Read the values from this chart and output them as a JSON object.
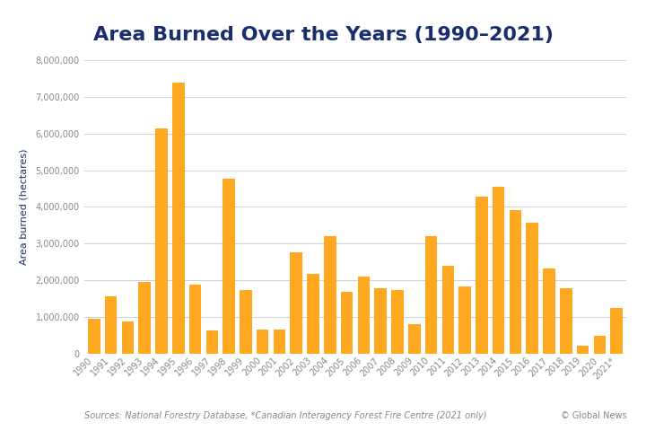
{
  "title": "Area Burned Over the Years (1990–2021)",
  "ylabel": "Area burned (hectares)",
  "background_color": "#ffffff",
  "bar_color": "#FFA920",
  "title_color": "#1a2e6e",
  "axis_label_color": "#1a2e6e",
  "tick_color": "#888888",
  "source_text": "Sources: National Forestry Database, *Canadian Interagency Forest Fire Centre (2021 only)",
  "credit_text": "© Global News",
  "years": [
    "1990",
    "1991",
    "1992",
    "1993",
    "1994",
    "1995",
    "1996",
    "1997",
    "1998",
    "1999",
    "2000",
    "2001",
    "2002",
    "2003",
    "2004",
    "2005",
    "2006",
    "2007",
    "2008",
    "2009",
    "2010",
    "2011",
    "2012",
    "2013",
    "2014",
    "2015",
    "2016",
    "2017",
    "2018",
    "2019",
    "2020",
    "2021*"
  ],
  "values": [
    950000,
    1550000,
    870000,
    1960000,
    6150000,
    7380000,
    1880000,
    630000,
    4760000,
    1720000,
    650000,
    660000,
    2760000,
    2180000,
    3200000,
    1680000,
    2110000,
    1790000,
    1720000,
    800000,
    3200000,
    2380000,
    1820000,
    4280000,
    4540000,
    3920000,
    3570000,
    2310000,
    1790000,
    220000,
    480000,
    1250000
  ],
  "ylim": [
    0,
    8000000
  ],
  "yticks": [
    0,
    1000000,
    2000000,
    3000000,
    4000000,
    5000000,
    6000000,
    7000000,
    8000000
  ],
  "title_fontsize": 16,
  "ylabel_fontsize": 8,
  "tick_fontsize": 7,
  "source_fontsize": 7,
  "grid_color": "#d0d0d0"
}
